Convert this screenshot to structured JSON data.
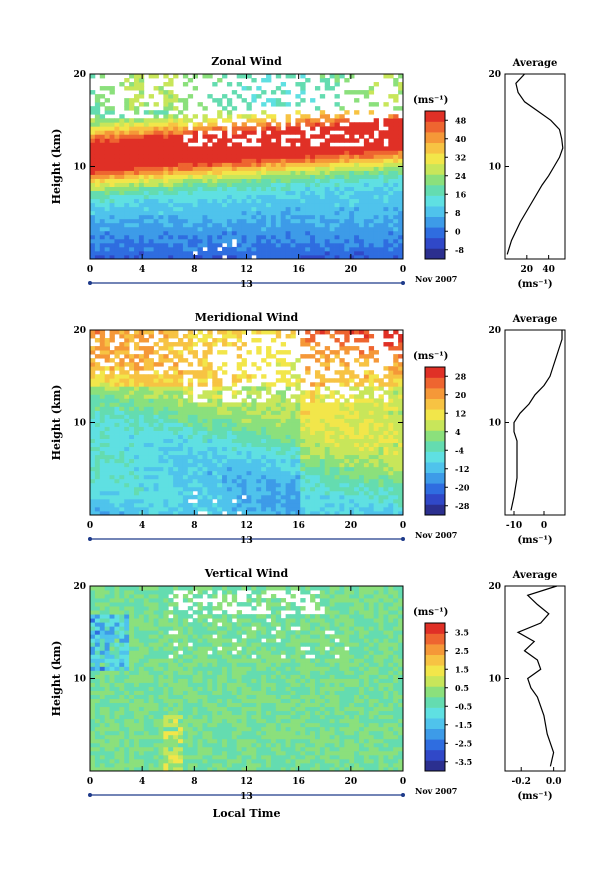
{
  "common": {
    "month_label": "Nov 2007",
    "day_label": "13",
    "xlabel": "Local Time",
    "ylabel": "Height (km)",
    "avg_title": "Average",
    "unit": "(ms⁻¹)",
    "x_ticks": [
      "0",
      "4",
      "8",
      "12",
      "16",
      "20",
      "0"
    ],
    "y_ticks": [
      "20",
      "10"
    ]
  },
  "chart_data": [
    {
      "type": "heatmap",
      "title": "Zonal Wind",
      "xlabel": "Local Time",
      "ylabel": "Height (km)",
      "x_range": [
        0,
        24
      ],
      "y_range": [
        0,
        20
      ],
      "colorbar_ticks": [
        "48",
        "40",
        "32",
        "24",
        "16",
        "8",
        "0",
        "-8"
      ],
      "colorbar_range": [
        -12,
        52
      ],
      "profile": {
        "title": "Average",
        "xlabel": "(ms⁻¹)",
        "x_ticks": [
          "20",
          "40"
        ],
        "x_range": [
          0,
          55
        ],
        "heights": [
          0.5,
          2,
          4,
          6,
          8,
          9,
          10,
          11,
          12,
          13,
          14,
          15,
          16,
          17,
          18,
          19,
          20
        ],
        "values": [
          2,
          6,
          14,
          24,
          34,
          40,
          45,
          50,
          53,
          52,
          50,
          42,
          30,
          18,
          12,
          10,
          18
        ]
      }
    },
    {
      "type": "heatmap",
      "title": "Meridional Wind",
      "xlabel": "Local Time",
      "ylabel": "Height (km)",
      "x_range": [
        0,
        24
      ],
      "y_range": [
        0,
        20
      ],
      "colorbar_ticks": [
        "28",
        "20",
        "12",
        "4",
        "-4",
        "-12",
        "-20",
        "-28"
      ],
      "colorbar_range": [
        -32,
        32
      ],
      "profile": {
        "title": "Average",
        "xlabel": "(ms⁻¹)",
        "x_ticks": [
          "-10",
          "0"
        ],
        "x_range": [
          -13,
          7
        ],
        "heights": [
          0.5,
          2,
          4,
          6,
          8,
          9,
          10,
          11,
          12,
          13,
          14,
          15,
          16,
          17,
          18,
          19,
          20
        ],
        "values": [
          -11,
          -10,
          -9,
          -9,
          -9,
          -10,
          -10,
          -8,
          -5,
          -3,
          0,
          2,
          3,
          4,
          5,
          6,
          6
        ]
      }
    },
    {
      "type": "heatmap",
      "title": "Vertical Wind",
      "xlabel": "Local Time",
      "ylabel": "Height (km)",
      "x_range": [
        0,
        24
      ],
      "y_range": [
        0,
        20
      ],
      "colorbar_ticks": [
        "3.5",
        "2.5",
        "1.5",
        "0.5",
        "-0.5",
        "-1.5",
        "-2.5",
        "-3.5"
      ],
      "colorbar_range": [
        -4,
        4
      ],
      "profile": {
        "title": "Average",
        "xlabel": "(ms⁻¹)",
        "x_ticks": [
          "-0.2",
          "0.0"
        ],
        "x_range": [
          -0.3,
          0.07
        ],
        "heights": [
          0.5,
          2,
          4,
          6,
          8,
          9,
          10,
          11,
          12,
          13,
          14,
          15,
          16,
          17,
          18,
          19,
          20
        ],
        "values": [
          -0.02,
          0.0,
          -0.04,
          -0.06,
          -0.1,
          -0.14,
          -0.16,
          -0.08,
          -0.1,
          -0.18,
          -0.12,
          -0.22,
          -0.08,
          -0.03,
          -0.1,
          -0.16,
          0.02
        ]
      }
    }
  ]
}
